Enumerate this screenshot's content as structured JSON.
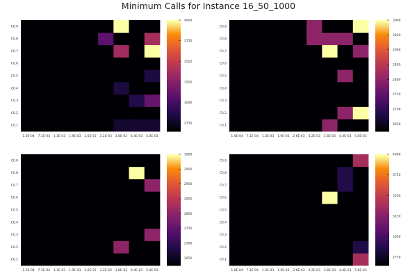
{
  "title": "Minimum Calls for Instance 16_50_1000",
  "chart_data": [
    {
      "type": "heatmap",
      "title": "Minimum Calls for Instance 16_50_1000",
      "x_ticks": [
        "1.0E-04",
        "7.1E-04",
        "1.3E-03",
        "1.9E-03",
        "2.6E-03",
        "3.2E-03",
        "3.8E-03",
        "4.4E-03",
        "5.0E-03"
      ],
      "y_ticks": [
        "C0.1",
        "C0.2",
        "C0.3",
        "C0.4",
        "C0.5",
        "C0.6",
        "C0.7",
        "C0.8",
        "C0.9"
      ],
      "colorbar": {
        "min": 2650,
        "max": 4000,
        "ticks": [
          2750,
          3000,
          3250,
          3500,
          3750,
          4000
        ]
      },
      "colormap": "inferno",
      "values": [
        [
          2650,
          2650,
          2650,
          2650,
          2650,
          2650,
          2780,
          2780,
          2780
        ],
        [
          2650,
          2650,
          2650,
          2650,
          2650,
          2650,
          2650,
          2650,
          2650
        ],
        [
          2650,
          2650,
          2650,
          2650,
          2650,
          2650,
          2650,
          2860,
          3120
        ],
        [
          2650,
          2650,
          2650,
          2650,
          2650,
          2650,
          2830,
          2650,
          2650
        ],
        [
          2650,
          2650,
          2650,
          2650,
          2650,
          2650,
          2650,
          2650,
          2830
        ],
        [
          2650,
          2650,
          2650,
          2650,
          2650,
          2650,
          2650,
          2650,
          2650
        ],
        [
          2650,
          2650,
          2650,
          2650,
          2650,
          2650,
          3350,
          2650,
          4000
        ],
        [
          2650,
          2650,
          2650,
          2650,
          2650,
          3080,
          2650,
          2650,
          3380
        ],
        [
          2650,
          2650,
          2650,
          2650,
          2650,
          2650,
          4000,
          2650,
          2650
        ]
      ]
    },
    {
      "type": "heatmap",
      "x_ticks": [
        "1.0E-04",
        "7.1E-04",
        "1.3E-03",
        "1.9E-03",
        "2.6E-03",
        "3.2E-03",
        "3.8E-03",
        "4.4E-03",
        "5.0E-03"
      ],
      "y_ticks": [
        "C0.1",
        "C0.2",
        "C0.3",
        "C0.4",
        "C0.5",
        "C0.6",
        "C0.7",
        "C0.8",
        "C0.9"
      ],
      "colorbar": {
        "min": 2625,
        "max": 3000,
        "ticks": [
          2650,
          2700,
          2750,
          2800,
          2850,
          2900,
          2950,
          3000
        ]
      },
      "colormap": "inferno",
      "values": [
        [
          2625,
          2625,
          2625,
          2625,
          2625,
          2625,
          2800,
          2625,
          2625
        ],
        [
          2625,
          2625,
          2625,
          2625,
          2625,
          2625,
          2625,
          2800,
          3000
        ],
        [
          2625,
          2625,
          2625,
          2625,
          2625,
          2625,
          2625,
          2625,
          2625
        ],
        [
          2625,
          2625,
          2625,
          2625,
          2625,
          2625,
          2625,
          2625,
          2625
        ],
        [
          2625,
          2625,
          2625,
          2625,
          2625,
          2625,
          2625,
          2800,
          2625
        ],
        [
          2625,
          2625,
          2625,
          2625,
          2625,
          2625,
          2625,
          2625,
          2625
        ],
        [
          2625,
          2625,
          2625,
          2625,
          2625,
          2625,
          3000,
          2625,
          2800
        ],
        [
          2625,
          2625,
          2625,
          2625,
          2625,
          2800,
          2800,
          2800,
          2625
        ],
        [
          2625,
          2625,
          2625,
          2625,
          2625,
          2800,
          2625,
          2625,
          3000
        ]
      ]
    },
    {
      "type": "heatmap",
      "x_ticks": [
        "1.0E-04",
        "7.1E-04",
        "1.3E-03",
        "1.9E-03",
        "2.6E-03",
        "3.2E-03",
        "3.8E-03",
        "4.4E-03",
        "5.0E-03"
      ],
      "y_ticks": [
        "C0.1",
        "C0.2",
        "C0.3",
        "C0.4",
        "C0.5",
        "C0.6",
        "C0.7",
        "C0.8",
        "C0.9"
      ],
      "colorbar": {
        "min": 2625,
        "max": 3000,
        "ticks": [
          2650,
          2700,
          2750,
          2800,
          2850,
          2900,
          2950,
          3000
        ]
      },
      "colormap": "inferno",
      "values": [
        [
          2625,
          2625,
          2625,
          2625,
          2625,
          2625,
          2625,
          2625,
          2625
        ],
        [
          2625,
          2625,
          2625,
          2625,
          2625,
          2625,
          2800,
          2625,
          2625
        ],
        [
          2625,
          2625,
          2625,
          2625,
          2625,
          2625,
          2625,
          2625,
          2800
        ],
        [
          2625,
          2625,
          2625,
          2625,
          2625,
          2625,
          2625,
          2625,
          2625
        ],
        [
          2625,
          2625,
          2625,
          2625,
          2625,
          2625,
          2625,
          2625,
          2625
        ],
        [
          2625,
          2625,
          2625,
          2625,
          2625,
          2625,
          2625,
          2625,
          2625
        ],
        [
          2625,
          2625,
          2625,
          2625,
          2625,
          2625,
          2625,
          2625,
          2800
        ],
        [
          2625,
          2625,
          2625,
          2625,
          2625,
          2625,
          2625,
          3000,
          2625
        ],
        [
          2625,
          2625,
          2625,
          2625,
          2625,
          2625,
          2625,
          2625,
          2625
        ]
      ]
    },
    {
      "type": "heatmap",
      "x_ticks": [
        "1.0E-04",
        "7.1E-04",
        "1.3E-03",
        "1.9E-03",
        "2.6E-03",
        "3.2E-03",
        "3.8E-03",
        "4.4E-03",
        "5.0E-03"
      ],
      "y_ticks": [
        "C0.1",
        "C0.2",
        "C0.3",
        "C0.4",
        "C0.5",
        "C0.6",
        "C0.7",
        "C0.8",
        "C0.9"
      ],
      "colorbar": {
        "min": 2650,
        "max": 4000,
        "ticks": [
          2750,
          3000,
          3250,
          3500,
          3750,
          4000
        ]
      },
      "colormap": "inferno",
      "values": [
        [
          2650,
          2650,
          2650,
          2650,
          2650,
          2650,
          2650,
          2650,
          3380
        ],
        [
          2650,
          2650,
          2650,
          2650,
          2650,
          2650,
          2650,
          2650,
          2860
        ],
        [
          2650,
          2650,
          2650,
          2650,
          2650,
          2650,
          2650,
          2650,
          2650
        ],
        [
          2650,
          2650,
          2650,
          2650,
          2650,
          2650,
          2650,
          2650,
          2650
        ],
        [
          2650,
          2650,
          2650,
          2650,
          2650,
          2650,
          2650,
          2650,
          2650
        ],
        [
          2650,
          2650,
          2650,
          2650,
          2650,
          2650,
          4000,
          2650,
          2650
        ],
        [
          2650,
          2650,
          2650,
          2650,
          2650,
          2650,
          2650,
          2860,
          2650
        ],
        [
          2650,
          2650,
          2650,
          2650,
          2650,
          2650,
          2650,
          2860,
          2650
        ],
        [
          2650,
          2650,
          2650,
          2650,
          2650,
          2650,
          2650,
          2650,
          3380
        ]
      ]
    }
  ]
}
